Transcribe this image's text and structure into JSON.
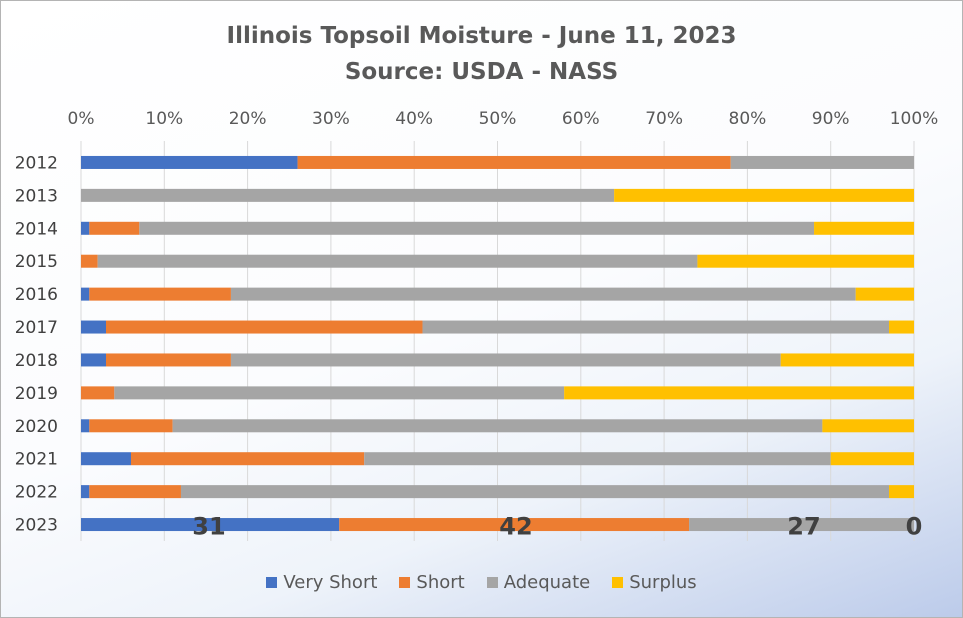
{
  "chart_data": {
    "type": "bar",
    "orientation": "horizontal",
    "stacked": true,
    "normalized": true,
    "title": "Illinois Topsoil Moisture - June 11, 2023",
    "subtitle": "Source: USDA - NASS",
    "categories": [
      "2012",
      "2013",
      "2014",
      "2015",
      "2016",
      "2017",
      "2018",
      "2019",
      "2020",
      "2021",
      "2022",
      "2023"
    ],
    "series": [
      {
        "name": "Very Short",
        "color": "#4472c4",
        "values": [
          26,
          0,
          1,
          0,
          1,
          3,
          3,
          0,
          1,
          6,
          1,
          31
        ]
      },
      {
        "name": "Short",
        "color": "#ed7d31",
        "values": [
          52,
          0,
          6,
          2,
          17,
          38,
          15,
          4,
          10,
          28,
          11,
          42
        ]
      },
      {
        "name": "Adequate",
        "color": "#a5a5a5",
        "values": [
          22,
          64,
          81,
          72,
          75,
          56,
          66,
          54,
          78,
          56,
          85,
          27
        ]
      },
      {
        "name": "Surplus",
        "color": "#ffc000",
        "values": [
          0,
          36,
          12,
          26,
          7,
          3,
          16,
          42,
          11,
          10,
          3,
          0
        ]
      }
    ],
    "x_ticks": [
      "0%",
      "10%",
      "20%",
      "30%",
      "40%",
      "50%",
      "60%",
      "70%",
      "80%",
      "90%",
      "100%"
    ],
    "xlim": [
      0,
      100
    ],
    "axis_position": "top",
    "data_labels": [
      {
        "category": "2023",
        "series": "Very Short",
        "text": "31"
      },
      {
        "category": "2023",
        "series": "Short",
        "text": "42"
      },
      {
        "category": "2023",
        "series": "Adequate",
        "text": "27"
      },
      {
        "category": "2023",
        "series": "Surplus",
        "text": "0"
      }
    ],
    "legend_position": "bottom"
  }
}
